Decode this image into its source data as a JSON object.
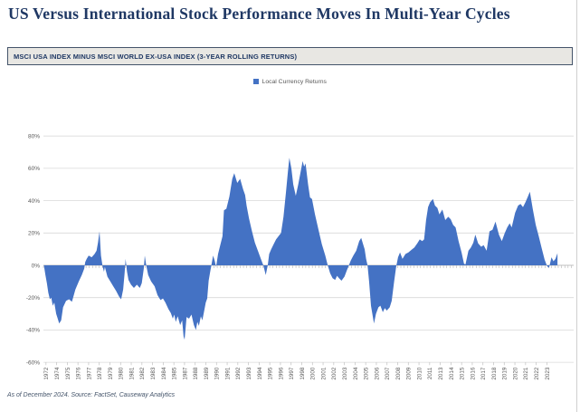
{
  "title": "US Versus International Stock Performance Moves In Multi-Year Cycles",
  "banner": {
    "label": "MSCI USA INDEX MINUS MSCI WORLD EX-USA INDEX (3-YEAR ROLLING RETURNS)"
  },
  "legend": {
    "label": "Local Currency Returns",
    "swatch_color": "#4472C4"
  },
  "footnote": "As of December 2024.  Source: FactSet, Causeway Analytics",
  "chart_data": {
    "type": "area",
    "title": "MSCI USA INDEX MINUS MSCI WORLD EX-USA INDEX (3-YEAR ROLLING RETURNS)",
    "xlabel": "",
    "ylabel": "",
    "grid": true,
    "legend_position": "top-center",
    "legend": [
      "Local Currency Returns"
    ],
    "ylim": [
      -60,
      80
    ],
    "ytick_step": 20,
    "y_tick_labels": [
      "80%",
      "60%",
      "40%",
      "20%",
      "0%",
      "-20%",
      "-40%",
      "-60%"
    ],
    "x_domain": [
      1972.7,
      2026.6
    ],
    "x_label_start": 1972.96,
    "x_label_step_years": 1.08333,
    "x_tick_labels": [
      "1972",
      "1974",
      "1975",
      "1976",
      "1977",
      "1978",
      "1979",
      "1980",
      "1981",
      "1982",
      "1983",
      "1984",
      "1985",
      "1987",
      "1988",
      "1989",
      "1990",
      "1991",
      "1992",
      "1993",
      "1994",
      "1995",
      "1996",
      "1997",
      "1998",
      "2000",
      "2001",
      "2002",
      "2003",
      "2004",
      "2005",
      "2006",
      "2007",
      "2008",
      "2009",
      "2010",
      "2011",
      "2013",
      "2014",
      "2015",
      "2016",
      "2017",
      "2018",
      "2019",
      "2020",
      "2021",
      "2022",
      "2023"
    ],
    "colors": {
      "area": "#4472C4",
      "grid": "#D9D9D9",
      "axis": "#BFBFBF",
      "tick_text": "#595959"
    },
    "series": [
      {
        "name": "Local Currency Returns",
        "color": "#4472C4",
        "points": [
          [
            1972.75,
            0
          ],
          [
            1972.9,
            -6
          ],
          [
            1973.05,
            -11
          ],
          [
            1973.2,
            -17
          ],
          [
            1973.35,
            -21
          ],
          [
            1973.5,
            -20
          ],
          [
            1973.65,
            -25
          ],
          [
            1973.8,
            -23
          ],
          [
            1974.0,
            -30
          ],
          [
            1974.15,
            -33
          ],
          [
            1974.3,
            -36
          ],
          [
            1974.5,
            -34
          ],
          [
            1974.7,
            -26
          ],
          [
            1975.0,
            -22
          ],
          [
            1975.3,
            -21
          ],
          [
            1975.6,
            -22.5
          ],
          [
            1975.95,
            -15
          ],
          [
            1976.3,
            -10
          ],
          [
            1976.6,
            -6
          ],
          [
            1976.85,
            -2
          ],
          [
            1976.95,
            2
          ],
          [
            1977.1,
            4
          ],
          [
            1977.3,
            6
          ],
          [
            1977.6,
            5
          ],
          [
            1977.9,
            7
          ],
          [
            1978.1,
            9
          ],
          [
            1978.25,
            14
          ],
          [
            1978.4,
            21
          ],
          [
            1978.55,
            6
          ],
          [
            1978.7,
            0
          ],
          [
            1978.85,
            -4
          ],
          [
            1978.95,
            -1
          ],
          [
            1979.2,
            -7
          ],
          [
            1979.5,
            -10
          ],
          [
            1979.8,
            -13
          ],
          [
            1980.1,
            -16
          ],
          [
            1980.4,
            -19.5
          ],
          [
            1980.6,
            -21
          ],
          [
            1980.8,
            -15
          ],
          [
            1980.95,
            -5
          ],
          [
            1981.05,
            4
          ],
          [
            1981.2,
            -4
          ],
          [
            1981.35,
            -9
          ],
          [
            1981.6,
            -12
          ],
          [
            1981.9,
            -14
          ],
          [
            1982.2,
            -12
          ],
          [
            1982.5,
            -14
          ],
          [
            1982.7,
            -11
          ],
          [
            1982.9,
            -2
          ],
          [
            1983.0,
            6
          ],
          [
            1983.15,
            0
          ],
          [
            1983.35,
            -6
          ],
          [
            1983.65,
            -10
          ],
          [
            1984.0,
            -13
          ],
          [
            1984.3,
            -18.5
          ],
          [
            1984.6,
            -21.5
          ],
          [
            1984.85,
            -20.5
          ],
          [
            1985.1,
            -23
          ],
          [
            1985.4,
            -27
          ],
          [
            1985.65,
            -29.5
          ],
          [
            1985.85,
            -33
          ],
          [
            1986.0,
            -30.5
          ],
          [
            1986.15,
            -35
          ],
          [
            1986.35,
            -31.5
          ],
          [
            1986.6,
            -37
          ],
          [
            1986.8,
            -34
          ],
          [
            1986.95,
            -44
          ],
          [
            1987.05,
            -46
          ],
          [
            1987.25,
            -32
          ],
          [
            1987.5,
            -33
          ],
          [
            1987.75,
            -30.5
          ],
          [
            1988.0,
            -37
          ],
          [
            1988.2,
            -40
          ],
          [
            1988.35,
            -35
          ],
          [
            1988.5,
            -37.5
          ],
          [
            1988.7,
            -31.5
          ],
          [
            1988.85,
            -34
          ],
          [
            1989.0,
            -29.5
          ],
          [
            1989.2,
            -23
          ],
          [
            1989.35,
            -20.5
          ],
          [
            1989.5,
            -9.5
          ],
          [
            1989.65,
            -4
          ],
          [
            1989.8,
            1
          ],
          [
            1989.95,
            6
          ],
          [
            1990.1,
            3
          ],
          [
            1990.25,
            -1
          ],
          [
            1990.45,
            7
          ],
          [
            1990.65,
            12
          ],
          [
            1990.9,
            18
          ],
          [
            1991.05,
            34
          ],
          [
            1991.3,
            35
          ],
          [
            1991.6,
            42.5
          ],
          [
            1991.9,
            53.5
          ],
          [
            1992.1,
            57
          ],
          [
            1992.4,
            51
          ],
          [
            1992.7,
            53.5
          ],
          [
            1993.0,
            47
          ],
          [
            1993.2,
            43.5
          ],
          [
            1993.35,
            37
          ],
          [
            1993.6,
            29
          ],
          [
            1993.9,
            21
          ],
          [
            1994.2,
            14
          ],
          [
            1994.5,
            9
          ],
          [
            1994.8,
            4
          ],
          [
            1995.05,
            0
          ],
          [
            1995.3,
            -6
          ],
          [
            1995.5,
            0
          ],
          [
            1995.65,
            7
          ],
          [
            1995.85,
            10
          ],
          [
            1996.1,
            13
          ],
          [
            1996.35,
            16
          ],
          [
            1996.6,
            18
          ],
          [
            1996.85,
            20
          ],
          [
            1997.1,
            30
          ],
          [
            1997.35,
            45
          ],
          [
            1997.55,
            58
          ],
          [
            1997.7,
            66.5
          ],
          [
            1997.9,
            60
          ],
          [
            1998.1,
            50
          ],
          [
            1998.35,
            43
          ],
          [
            1998.6,
            50
          ],
          [
            1998.85,
            58
          ],
          [
            1999.05,
            64.5
          ],
          [
            1999.2,
            61
          ],
          [
            1999.35,
            63
          ],
          [
            1999.6,
            50
          ],
          [
            1999.8,
            42
          ],
          [
            2000.0,
            41
          ],
          [
            2000.3,
            31.5
          ],
          [
            2000.7,
            21
          ],
          [
            2001.0,
            13
          ],
          [
            2001.35,
            6
          ],
          [
            2001.6,
            0
          ],
          [
            2001.85,
            -5
          ],
          [
            2002.1,
            -8
          ],
          [
            2002.35,
            -9
          ],
          [
            2002.55,
            -6.5
          ],
          [
            2002.75,
            -8
          ],
          [
            2003.0,
            -9.5
          ],
          [
            2003.3,
            -7
          ],
          [
            2003.55,
            -3
          ],
          [
            2003.75,
            0
          ],
          [
            2003.95,
            3
          ],
          [
            2004.2,
            6
          ],
          [
            2004.5,
            9
          ],
          [
            2004.8,
            15
          ],
          [
            2005.0,
            17
          ],
          [
            2005.2,
            13
          ],
          [
            2005.35,
            10
          ],
          [
            2005.5,
            4
          ],
          [
            2005.65,
            0
          ],
          [
            2005.8,
            -10
          ],
          [
            2006.0,
            -25
          ],
          [
            2006.3,
            -36
          ],
          [
            2006.5,
            -30
          ],
          [
            2006.75,
            -26
          ],
          [
            2006.95,
            -25
          ],
          [
            2007.2,
            -29
          ],
          [
            2007.4,
            -26.5
          ],
          [
            2007.6,
            -28
          ],
          [
            2007.9,
            -26
          ],
          [
            2008.1,
            -22
          ],
          [
            2008.35,
            -10
          ],
          [
            2008.55,
            -1
          ],
          [
            2008.75,
            5
          ],
          [
            2008.95,
            8
          ],
          [
            2009.2,
            4
          ],
          [
            2009.5,
            7
          ],
          [
            2009.8,
            8
          ],
          [
            2010.1,
            9.5
          ],
          [
            2010.4,
            11
          ],
          [
            2010.7,
            13.5
          ],
          [
            2010.95,
            16
          ],
          [
            2011.2,
            15
          ],
          [
            2011.4,
            16
          ],
          [
            2011.6,
            28
          ],
          [
            2011.8,
            36
          ],
          [
            2012.0,
            39
          ],
          [
            2012.3,
            41
          ],
          [
            2012.5,
            37
          ],
          [
            2012.75,
            35.5
          ],
          [
            2012.95,
            31.5
          ],
          [
            2013.25,
            34.5
          ],
          [
            2013.55,
            28
          ],
          [
            2013.85,
            30
          ],
          [
            2014.1,
            28.5
          ],
          [
            2014.35,
            25
          ],
          [
            2014.6,
            23.5
          ],
          [
            2014.9,
            15
          ],
          [
            2015.2,
            8
          ],
          [
            2015.45,
            1
          ],
          [
            2015.6,
            0.5
          ],
          [
            2015.9,
            9
          ],
          [
            2016.15,
            11
          ],
          [
            2016.4,
            14
          ],
          [
            2016.6,
            19
          ],
          [
            2016.9,
            13.5
          ],
          [
            2017.2,
            11.5
          ],
          [
            2017.45,
            12.5
          ],
          [
            2017.75,
            9
          ],
          [
            2018.05,
            21
          ],
          [
            2018.35,
            22
          ],
          [
            2018.65,
            27
          ],
          [
            2019.0,
            19
          ],
          [
            2019.3,
            15
          ],
          [
            2019.6,
            20
          ],
          [
            2019.85,
            23.5
          ],
          [
            2020.1,
            26
          ],
          [
            2020.3,
            23.5
          ],
          [
            2020.65,
            32.5
          ],
          [
            2020.95,
            37
          ],
          [
            2021.2,
            38
          ],
          [
            2021.45,
            36
          ],
          [
            2021.7,
            39
          ],
          [
            2021.95,
            42.5
          ],
          [
            2022.15,
            45.5
          ],
          [
            2022.45,
            34.5
          ],
          [
            2022.75,
            25
          ],
          [
            2023.05,
            18
          ],
          [
            2023.35,
            10.5
          ],
          [
            2023.65,
            3.5
          ],
          [
            2023.9,
            -0.5
          ],
          [
            2024.1,
            -1.5
          ],
          [
            2024.35,
            5
          ],
          [
            2024.55,
            2.5
          ],
          [
            2024.75,
            4
          ],
          [
            2024.95,
            7.5
          ]
        ]
      }
    ]
  }
}
